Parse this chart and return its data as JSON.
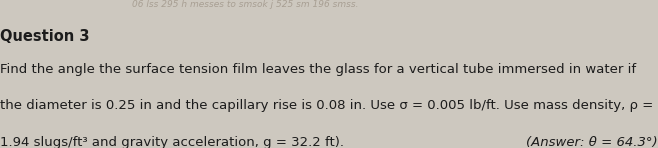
{
  "background_color": "#cdc8bf",
  "watermark_text": "06 lss 295 h messes to smsok j 525 sm 196 smss.",
  "watermark_color": "#a89f93",
  "watermark_fontsize": 6.5,
  "title": "Question 3",
  "title_fontsize": 10.5,
  "body_line1": "Find the angle the surface tension film leaves the glass for a vertical tube immersed in water if",
  "body_line2": "the diameter is 0.25 in and the capillary rise is 0.08 in. Use σ = 0.005 lb/ft. Use mass density, ρ =",
  "body_line3": "1.94 slugs/ft³ and gravity acceleration, g = 32.2 ft).",
  "body_fontsize": 9.5,
  "answer_text": "(Answer: θ = 64.3°)",
  "answer_fontsize": 9.5,
  "text_color": "#1c1c1c"
}
